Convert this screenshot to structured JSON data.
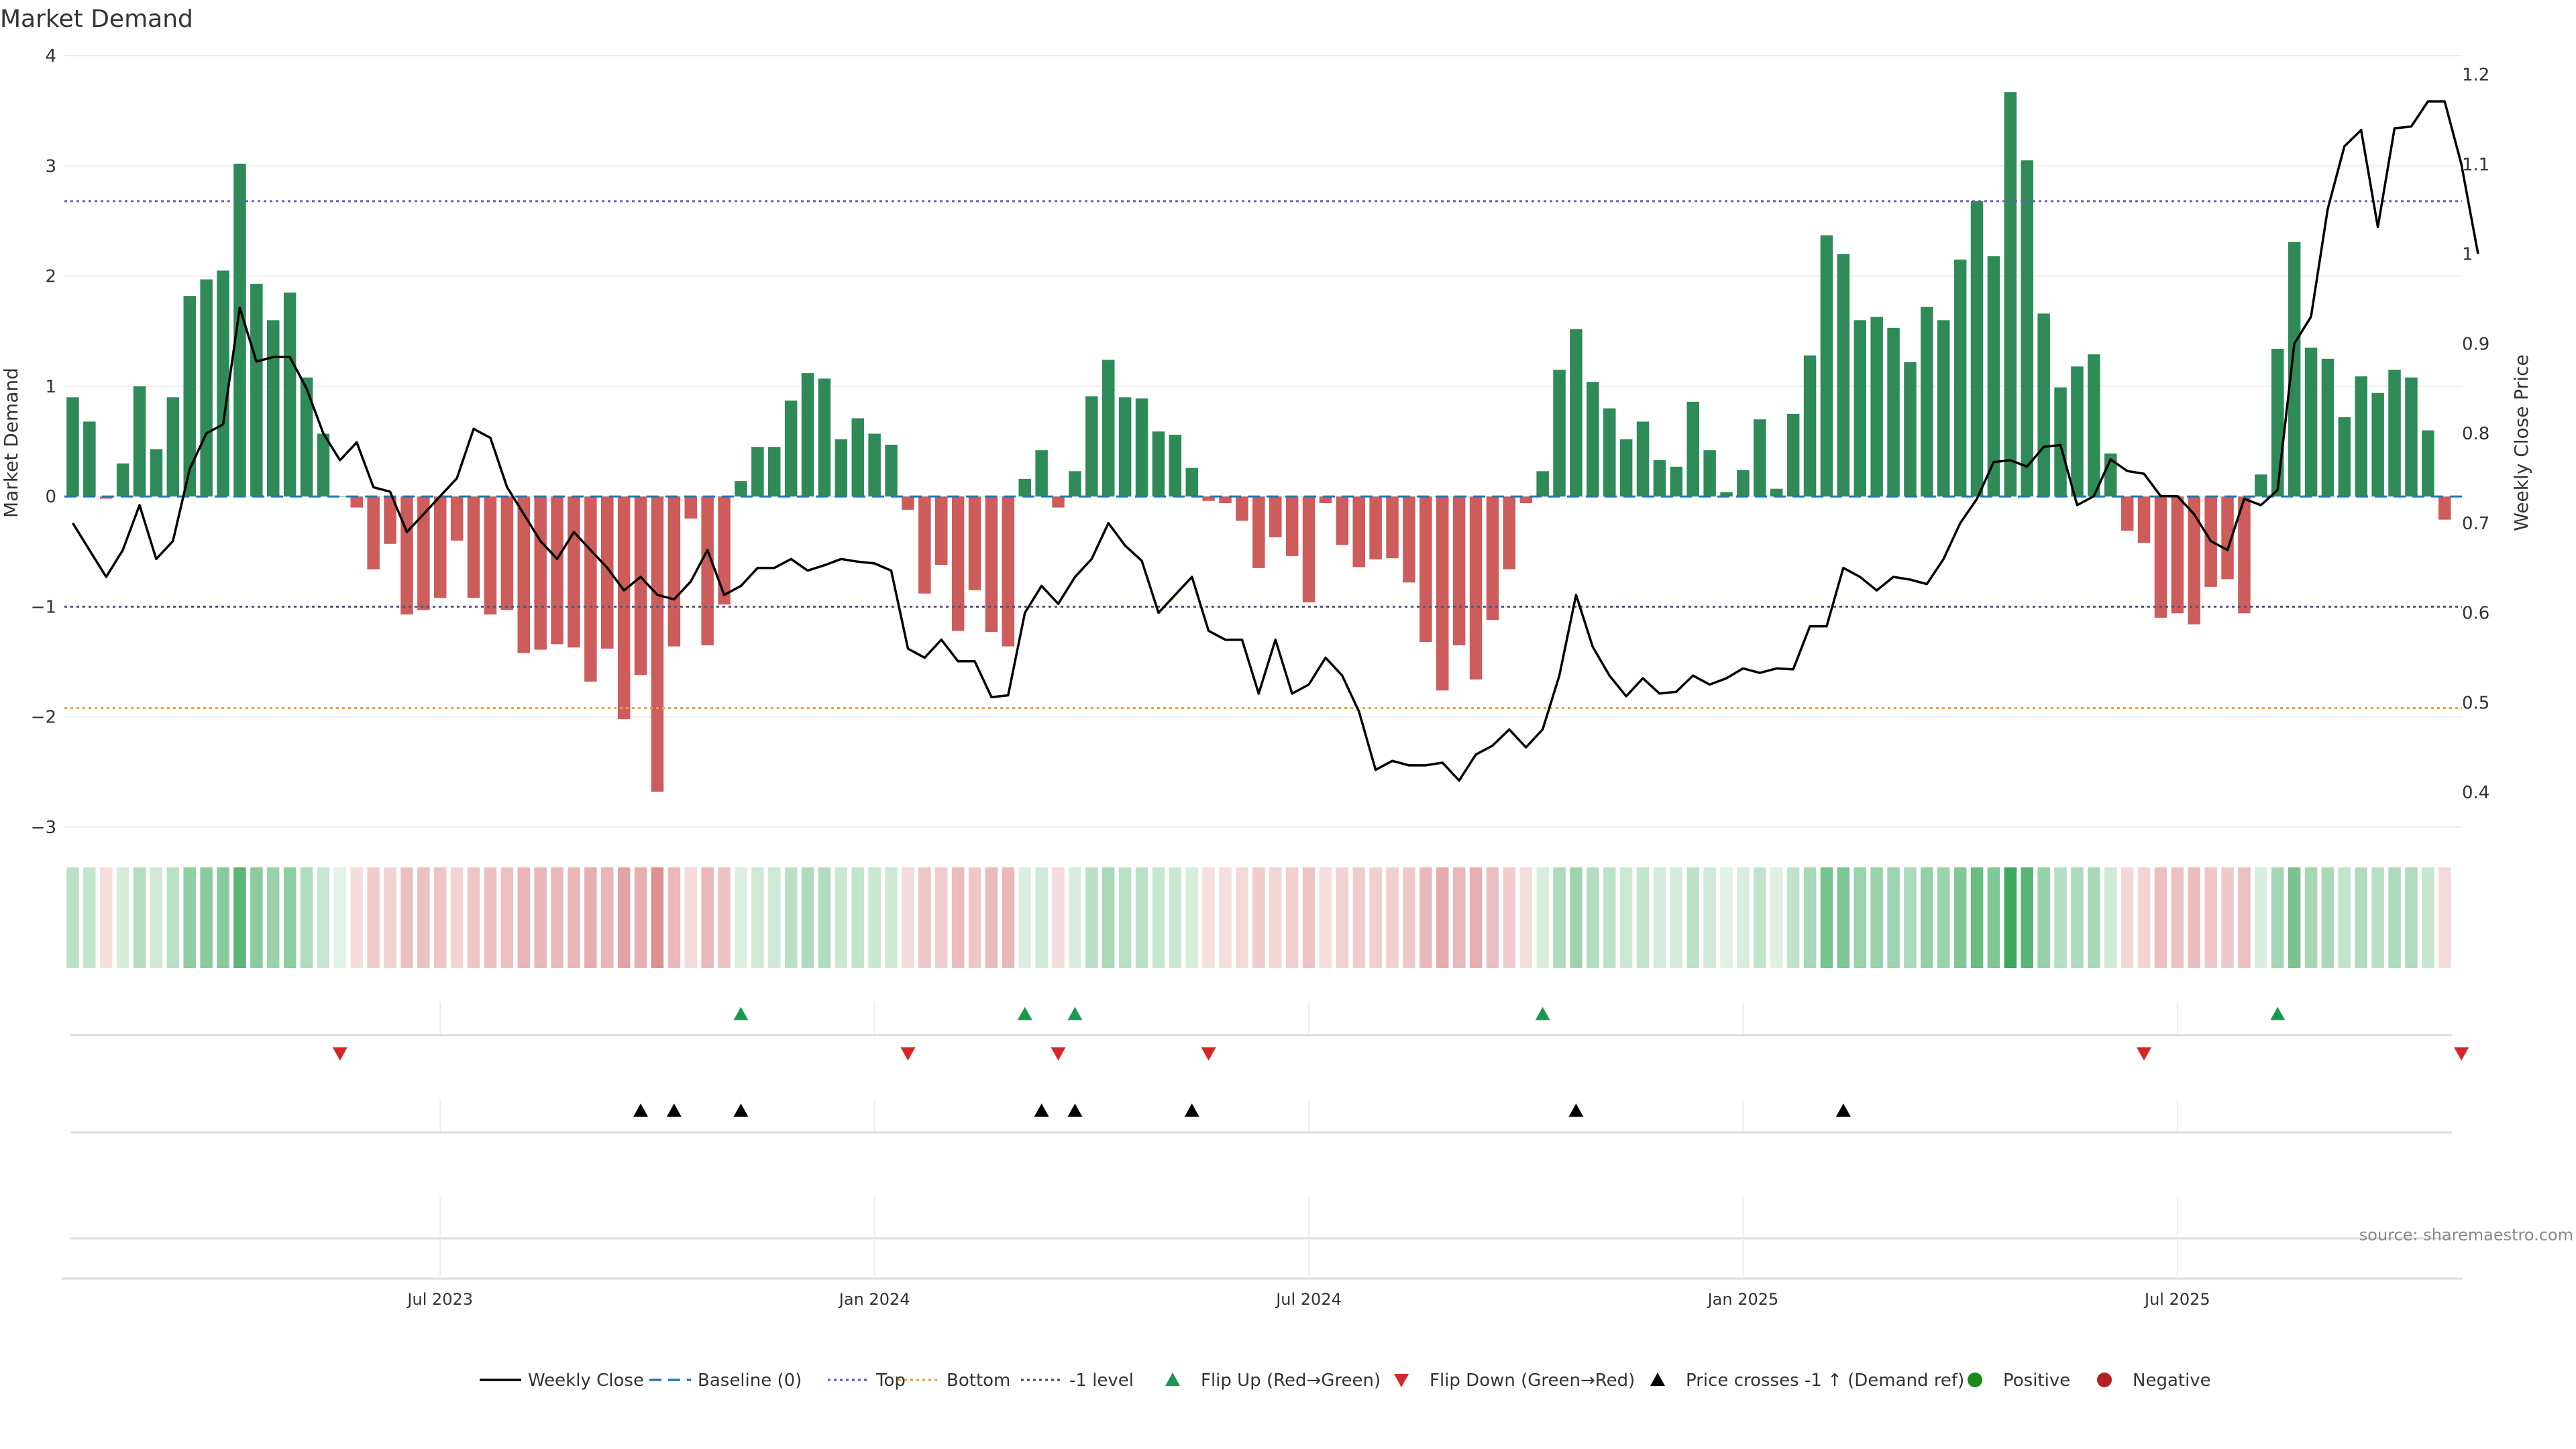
{
  "chart_data": {
    "type": "bar",
    "title": "Market Demand",
    "ylabel": "Market Demand",
    "y2label": "Weekly Close Price",
    "ylim": [
      -3,
      4
    ],
    "y2lim": [
      0.35,
      1.2
    ],
    "yticks": [
      4,
      3,
      2,
      1,
      0,
      -1,
      -2,
      -3
    ],
    "y2ticks": [
      1.2,
      1.1,
      1,
      0.9,
      0.8,
      0.7,
      0.6,
      0.5,
      0.4
    ],
    "xticks": [
      "Jul 2023",
      "Jan 2024",
      "Jul 2024",
      "Jan 2025",
      "Jul 2025"
    ],
    "xtick_week_index": [
      22,
      48,
      74,
      100,
      126
    ],
    "levels": {
      "top": 2.68,
      "bottom": -1.92,
      "minus_one": -1,
      "baseline": 0
    },
    "colors": {
      "positive": "#2e8b57",
      "negative": "#cd5c5c",
      "price": "#000000",
      "baseline": "#1f77b4",
      "top": "#6a5acd",
      "bottom": "#e8a33d",
      "minus_one": "#555577",
      "flip_up": "#1a9850",
      "flip_down": "#d62728",
      "cross": "#000000",
      "legend_positive": "#1a8a1a",
      "legend_negative": "#b22222"
    },
    "series": [
      {
        "name": "Market Demand",
        "values": [
          0.9,
          0.68,
          -0.02,
          0.3,
          1.0,
          0.43,
          0.9,
          1.82,
          1.97,
          2.05,
          3.02,
          1.93,
          1.6,
          1.85,
          1.08,
          0.57,
          0.0,
          -0.1,
          -0.66,
          -0.43,
          -1.07,
          -1.03,
          -0.92,
          -0.4,
          -0.92,
          -1.07,
          -1.03,
          -1.42,
          -1.39,
          -1.34,
          -1.37,
          -1.68,
          -1.38,
          -2.02,
          -1.62,
          -2.68,
          -1.36,
          -0.2,
          -1.35,
          -0.98,
          0.14,
          0.45,
          0.45,
          0.87,
          1.12,
          1.07,
          0.52,
          0.71,
          0.57,
          0.47,
          -0.12,
          -0.88,
          -0.62,
          -1.22,
          -0.85,
          -1.23,
          -1.36,
          0.16,
          0.42,
          -0.1,
          0.23,
          0.91,
          1.24,
          0.9,
          0.89,
          0.59,
          0.56,
          0.26,
          -0.04,
          -0.06,
          -0.22,
          -0.65,
          -0.37,
          -0.54,
          -0.96,
          -0.06,
          -0.44,
          -0.64,
          -0.57,
          -0.56,
          -0.78,
          -1.32,
          -1.76,
          -1.35,
          -1.66,
          -1.12,
          -0.66,
          -0.06,
          0.23,
          1.15,
          1.52,
          1.04,
          0.8,
          0.52,
          0.68,
          0.33,
          0.27,
          0.86,
          0.42,
          0.04,
          0.24,
          0.7,
          0.07,
          0.75,
          1.28,
          2.37,
          2.2,
          1.6,
          1.63,
          1.53,
          1.22,
          1.72,
          1.6,
          2.15,
          2.68,
          2.18,
          3.67,
          3.05,
          1.66,
          0.99,
          1.18,
          1.29,
          0.39,
          -0.31,
          -0.42,
          -1.1,
          -1.06,
          -1.16,
          -0.82,
          -0.75,
          -1.06,
          0.2,
          1.34,
          2.31,
          1.35,
          1.25,
          0.72,
          1.09,
          0.94,
          1.15,
          1.08,
          0.6,
          -0.21
        ]
      },
      {
        "name": "Weekly Close",
        "values": [
          0.7,
          0.67,
          0.64,
          0.67,
          0.72,
          0.66,
          0.68,
          0.76,
          0.8,
          0.81,
          0.94,
          0.88,
          0.885,
          0.885,
          0.85,
          0.8,
          0.77,
          0.79,
          0.74,
          0.735,
          0.69,
          0.71,
          0.73,
          0.75,
          0.805,
          0.795,
          0.74,
          0.71,
          0.68,
          0.66,
          0.69,
          0.67,
          0.65,
          0.625,
          0.64,
          0.62,
          0.615,
          0.635,
          0.67,
          0.62,
          0.63,
          0.65,
          0.65,
          0.66,
          0.647,
          0.653,
          0.66,
          0.657,
          0.655,
          0.647,
          0.56,
          0.55,
          0.57,
          0.546,
          0.546,
          0.506,
          0.508,
          0.6,
          0.63,
          0.61,
          0.64,
          0.66,
          0.7,
          0.675,
          0.658,
          0.6,
          0.62,
          0.64,
          0.58,
          0.57,
          0.57,
          0.51,
          0.57,
          0.51,
          0.52,
          0.55,
          0.53,
          0.49,
          0.425,
          0.435,
          0.43,
          0.43,
          0.433,
          0.413,
          0.442,
          0.452,
          0.47,
          0.45,
          0.47,
          0.53,
          0.62,
          0.562,
          0.53,
          0.507,
          0.527,
          0.51,
          0.512,
          0.53,
          0.52,
          0.527,
          0.538,
          0.533,
          0.538,
          0.537,
          0.585,
          0.585,
          0.65,
          0.64,
          0.625,
          0.64,
          0.637,
          0.632,
          0.66,
          0.7,
          0.727,
          0.768,
          0.77,
          0.763,
          0.785,
          0.787,
          0.72,
          0.73,
          0.771,
          0.758,
          0.755,
          0.73,
          0.73,
          0.71,
          0.68,
          0.67,
          0.727,
          0.72,
          0.737,
          0.9,
          0.93,
          1.05,
          1.12,
          1.138,
          1.03,
          1.14,
          1.142,
          1.17,
          1.17,
          1.1,
          1.0
        ]
      }
    ],
    "heat_strip": {
      "name": "Positive/Negative intensity strip",
      "source": "Market Demand"
    },
    "flip_up_weeks": [
      40,
      57,
      60,
      88,
      132
    ],
    "flip_down_weeks": [
      16,
      50,
      59,
      68,
      124,
      143
    ],
    "price_cross_weeks": [
      34,
      36,
      40,
      58,
      60,
      67,
      90,
      106
    ],
    "annotation": "source: sharemaestro.com",
    "legend": [
      {
        "label": "Weekly Close",
        "kind": "line-solid",
        "color_key": "price"
      },
      {
        "label": "Baseline (0)",
        "kind": "line-dashed",
        "color_key": "baseline"
      },
      {
        "label": "Top",
        "kind": "line-dotted",
        "color_key": "top"
      },
      {
        "label": "Bottom",
        "kind": "line-dotted",
        "color_key": "bottom"
      },
      {
        "label": "-1 level",
        "kind": "line-dotted",
        "color_key": "minus_one"
      },
      {
        "label": "Flip Up (Red→Green)",
        "kind": "tri-up",
        "color_key": "flip_up"
      },
      {
        "label": "Flip Down (Green→Red)",
        "kind": "tri-down",
        "color_key": "flip_down"
      },
      {
        "label": "Price crosses -1 ↑ (Demand ref)",
        "kind": "tri-up",
        "color_key": "cross"
      },
      {
        "label": "Positive",
        "kind": "dot",
        "color_key": "legend_positive"
      },
      {
        "label": "Negative",
        "kind": "dot",
        "color_key": "legend_negative"
      }
    ]
  }
}
